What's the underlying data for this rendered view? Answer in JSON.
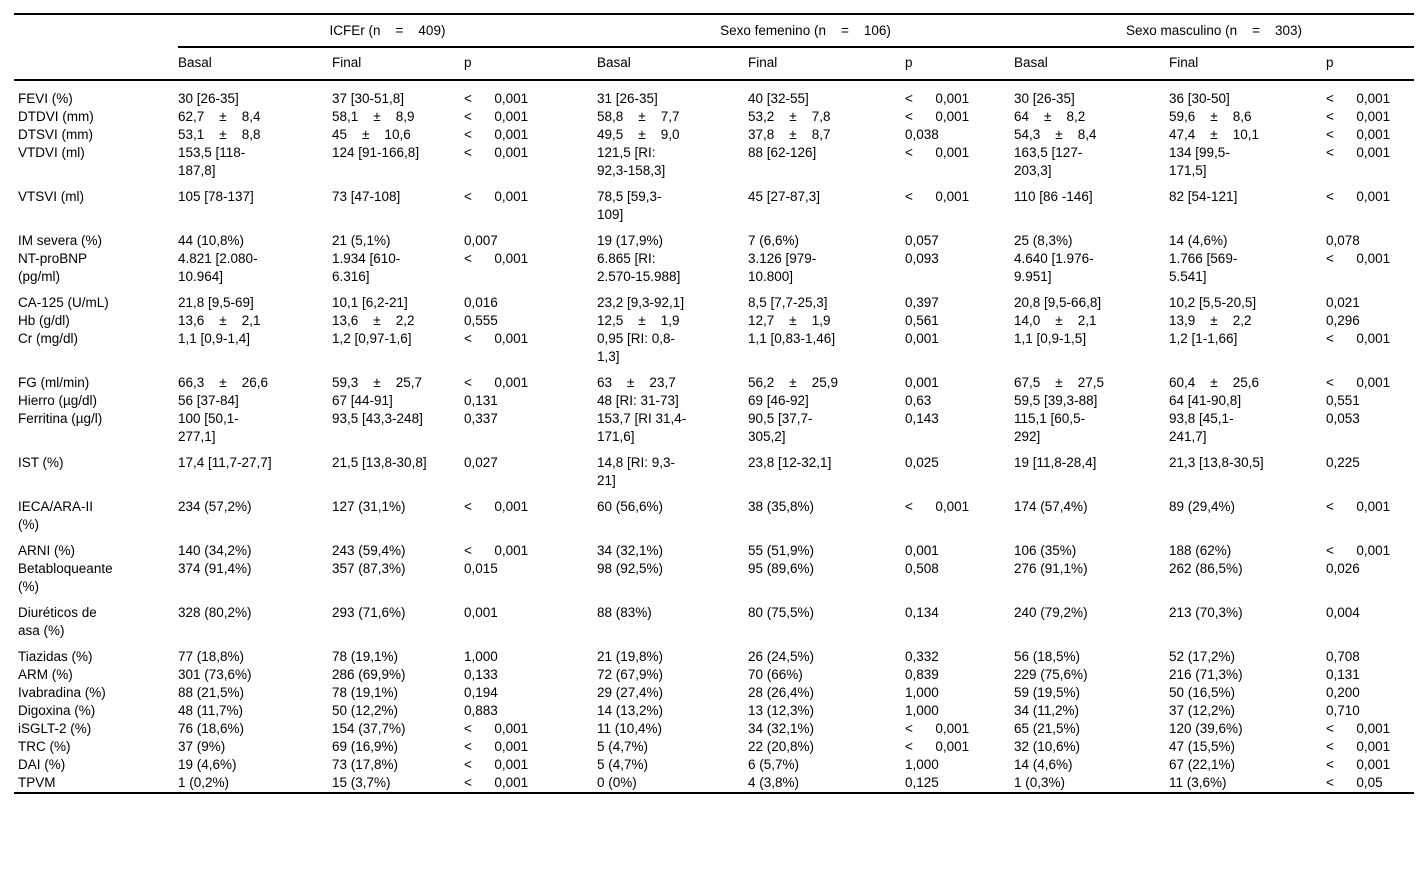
{
  "colors": {
    "background": "#ffffff",
    "text": "#000000",
    "rule": "#000000"
  },
  "table": {
    "group_titles": [
      "ICFEr (n    =    409)",
      "Sexo femenino (n    =    106)",
      "Sexo masculino (n    =    303)"
    ],
    "subheaders": [
      "Basal",
      "Final",
      "p"
    ],
    "rows": [
      {
        "label": "FEVI (%)",
        "cells": [
          "30 [26-35]",
          "37 [30-51,8]",
          "<      0,001",
          "31 [26-35]",
          "40 [32-55]",
          "<      0,001",
          "30 [26-35]",
          "36 [30-50]",
          "<      0,001"
        ]
      },
      {
        "label": "DTDVI (mm)",
        "cells": [
          "62,7    ±    8,4",
          "58,1    ±    8,9",
          "<      0,001",
          "58,8    ±    7,7",
          "53,2    ±    7,8",
          "<      0,001",
          "64    ±    8,2",
          "59,6    ±    8,6",
          "<      0,001"
        ]
      },
      {
        "label": "DTSVI (mm)",
        "cells": [
          "53,1    ±    8,8",
          "45    ±    10,6",
          "<      0,001",
          "49,5    ±    9,0",
          "37,8    ±    8,7",
          "0,038",
          "54,3    ±    8,4",
          "47,4    ±    10,1",
          "<      0,001"
        ]
      },
      {
        "label": "VTDVI (ml)",
        "cells": [
          "153,5 [118-\n187,8]",
          "124 [91-166,8]",
          "<      0,001",
          "121,5 [RI:\n92,3-158,3]",
          "88 [62-126]",
          "<      0,001",
          "163,5 [127-\n203,3]",
          "134 [99,5-\n171,5]",
          "<      0,001"
        ]
      },
      {
        "label": "VTSVI (ml)",
        "cells": [
          "105 [78-137]",
          "73 [47-108]",
          "<      0,001",
          "78,5 [59,3-\n109]",
          "45 [27-87,3]",
          "<      0,001",
          "110 [86 -146]",
          "82 [54-121]",
          "<      0,001"
        ]
      },
      {
        "label": "IM severa (%)",
        "cells": [
          "44 (10,8%)",
          "21 (5,1%)",
          "0,007",
          "19 (17,9%)",
          "7 (6,6%)",
          "0,057",
          "25 (8,3%)",
          "14 (4,6%)",
          "0,078"
        ]
      },
      {
        "label": "NT-proBNP\n(pg/ml)",
        "cells": [
          "4.821 [2.080-\n10.964]",
          "1.934 [610-\n6.316]",
          "<      0,001",
          "6.865 [RI:\n2.570-15.988]",
          "3.126 [979-\n10.800]",
          "0,093",
          "4.640 [1.976-\n9.951]",
          "1.766 [569-\n5.541]",
          "<      0,001"
        ]
      },
      {
        "label": "CA-125 (U/mL)",
        "cells": [
          "21,8 [9,5-69]",
          "10,1 [6,2-21]",
          "0,016",
          "23,2 [9,3-92,1]",
          "8,5 [7,7-25,3]",
          "0,397",
          "20,8 [9,5-66,8]",
          "10,2 [5,5-20,5]",
          "0,021"
        ]
      },
      {
        "label": "Hb (g/dl)",
        "cells": [
          "13,6    ±    2,1",
          "13,6    ±    2,2",
          "0,555",
          "12,5    ±    1,9",
          "12,7    ±    1,9",
          "0,561",
          "14,0    ±    2,1",
          "13,9    ±    2,2",
          "0,296"
        ]
      },
      {
        "label": "Cr (mg/dl)",
        "cells": [
          "1,1 [0,9-1,4]",
          "1,2 [0,97-1,6]",
          "<      0,001",
          "0,95 [RI: 0,8-\n1,3]",
          "1,1 [0,83-1,46]",
          "0,001",
          "1,1 [0,9-1,5]",
          "1,2 [1-1,66]",
          "<      0,001"
        ]
      },
      {
        "label": "FG (ml/min)",
        "cells": [
          "66,3    ±    26,6",
          "59,3    ±    25,7",
          "<      0,001",
          "63    ±    23,7",
          "56,2    ±    25,9",
          "0,001",
          "67,5    ±    27,5",
          "60,4    ±    25,6",
          "<      0,001"
        ]
      },
      {
        "label": "Hierro (µg/dl)",
        "cells": [
          "56 [37-84]",
          "67 [44-91]",
          "0,131",
          "48 [RI: 31-73]",
          "69 [46-92]",
          "0,63",
          "59,5 [39,3-88]",
          "64 [41-90,8]",
          "0,551"
        ]
      },
      {
        "label": "Ferritina (µg/l)",
        "cells": [
          "100 [50,1-\n277,1]",
          "93,5 [43,3-248]",
          "0,337",
          "153,7 [RI 31,4-\n171,6]",
          "90,5 [37,7-\n305,2]",
          "0,143",
          "115,1 [60,5-\n292]",
          "93,8 [45,1-\n241,7]",
          "0,053"
        ]
      },
      {
        "label": "IST (%)",
        "cells": [
          "17,4 [11,7-27,7]",
          "21,5 [13,8-30,8]",
          "0,027",
          "14,8 [RI: 9,3-\n21]",
          "23,8 [12-32,1]",
          "0,025",
          "19 [11,8-28,4]",
          "21,3 [13,8-30,5]",
          "0,225"
        ]
      },
      {
        "label": "IECA/ARA-II\n(%)",
        "cells": [
          "234 (57,2%)",
          "127 (31,1%)",
          "<      0,001",
          "60 (56,6%)",
          "38 (35,8%)",
          "<      0,001",
          "174 (57,4%)",
          "89 (29,4%)",
          "<      0,001"
        ]
      },
      {
        "label": "ARNI (%)",
        "cells": [
          "140 (34,2%)",
          "243 (59,4%)",
          "<      0,001",
          "34 (32,1%)",
          "55 (51,9%)",
          "0,001",
          "106 (35%)",
          "188 (62%)",
          "<      0,001"
        ]
      },
      {
        "label": "Betabloqueante\n(%)",
        "cells": [
          "374 (91,4%)",
          "357 (87,3%)",
          "0,015",
          "98 (92,5%)",
          "95 (89,6%)",
          "0,508",
          "276 (91,1%)",
          "262 (86,5%)",
          "0,026"
        ]
      },
      {
        "label": "Diuréticos de\nasa (%)",
        "cells": [
          "328 (80,2%)",
          "293 (71,6%)",
          "0,001",
          "88 (83%)",
          "80 (75,5%)",
          "0,134",
          "240 (79,2%)",
          "213 (70,3%)",
          "0,004"
        ]
      },
      {
        "label": "Tiazidas (%)",
        "cells": [
          "77 (18,8%)",
          "78 (19,1%)",
          "1,000",
          "21 (19,8%)",
          "26 (24,5%)",
          "0,332",
          "56 (18,5%)",
          "52 (17,2%)",
          "0,708"
        ]
      },
      {
        "label": "ARM (%)",
        "cells": [
          "301 (73,6%)",
          "286 (69,9%)",
          "0,133",
          "72 (67,9%)",
          "70 (66%)",
          "0,839",
          "229 (75,6%)",
          "216 (71,3%)",
          "0,131"
        ]
      },
      {
        "label": "Ivabradina (%)",
        "cells": [
          "88 (21,5%)",
          "78 (19,1%)",
          "0,194",
          "29 (27,4%)",
          "28 (26,4%)",
          "1,000",
          "59 (19,5%)",
          "50 (16,5%)",
          "0,200"
        ]
      },
      {
        "label": "Digoxina (%)",
        "cells": [
          "48 (11,7%)",
          "50 (12,2%)",
          "0,883",
          "14 (13,2%)",
          "13 (12,3%)",
          "1,000",
          "34 (11,2%)",
          "37 (12,2%)",
          "0,710"
        ]
      },
      {
        "label": "iSGLT-2 (%)",
        "cells": [
          "76 (18,6%)",
          "154 (37,7%)",
          "<      0,001",
          "11 (10,4%)",
          "34 (32,1%)",
          "<      0,001",
          "65 (21,5%)",
          "120 (39,6%)",
          "<      0,001"
        ]
      },
      {
        "label": "TRC (%)",
        "cells": [
          "37 (9%)",
          "69 (16,9%)",
          "<      0,001",
          "5 (4,7%)",
          "22 (20,8%)",
          "<      0,001",
          "32 (10,6%)",
          "47 (15,5%)",
          "<      0,001"
        ]
      },
      {
        "label": "DAI (%)",
        "cells": [
          "19 (4,6%)",
          "73 (17,8%)",
          "<      0,001",
          "5 (4,7%)",
          "6 (5,7%)",
          "1,000",
          "14 (4,6%)",
          "67 (22,1%)",
          "<      0,001"
        ]
      },
      {
        "label": "TPVM",
        "cells": [
          "1 (0,2%)",
          "15 (3,7%)",
          "<      0,001",
          "0 (0%)",
          "4 (3,8%)",
          "0,125",
          "1 (0,3%)",
          "11 (3,6%)",
          "<      0,05"
        ]
      }
    ]
  }
}
